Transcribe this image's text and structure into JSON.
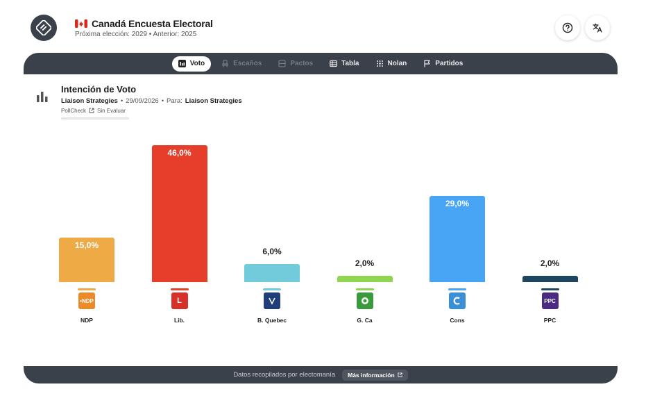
{
  "header": {
    "title": "Canadá Encuesta Electoral",
    "subtitle": "Próxima elección: 2029 • Anterior: 2025"
  },
  "tabs": [
    {
      "label": "Voto",
      "icon": "bar-chart-icon",
      "state": "active"
    },
    {
      "label": "Escaños",
      "icon": "seat-icon",
      "state": "disabled"
    },
    {
      "label": "Pactos",
      "icon": "pact-icon",
      "state": "disabled"
    },
    {
      "label": "Tabla",
      "icon": "table-icon",
      "state": "normal"
    },
    {
      "label": "Nolan",
      "icon": "nolan-icon",
      "state": "normal"
    },
    {
      "label": "Partidos",
      "icon": "flag-icon",
      "state": "normal"
    }
  ],
  "poll": {
    "title": "Intención de Voto",
    "pollster": "Liaison Strategies",
    "date": "29/09/2026",
    "for_label": "Para:",
    "for_value": "Liaison Strategies",
    "pollcheck": "PollCheck",
    "rating": "Sin Evaluar"
  },
  "footer": {
    "text": "Datos recopilados por electomanía",
    "button": "Más información"
  },
  "colors": {
    "dark": "#3b414b",
    "NDP": "#eeab45",
    "Lib": "#e53f2b",
    "BQ": "#72cbdb",
    "GP": "#8ed652",
    "Cons": "#48a4f5",
    "PPC": "#1e4660"
  },
  "chart_data": {
    "type": "bar",
    "title": "Intención de Voto",
    "categories": [
      "NDP",
      "Lib.",
      "B. Quebec",
      "G. Ca",
      "Cons",
      "PPC"
    ],
    "values": [
      15.0,
      46.0,
      6.0,
      2.0,
      29.0,
      2.0
    ],
    "value_labels": [
      "15,0%",
      "46,0%",
      "6,0%",
      "2,0%",
      "29,0%",
      "2,0%"
    ],
    "bar_colors": [
      "#eeab45",
      "#e53f2b",
      "#72cbdb",
      "#8ed652",
      "#48a4f5",
      "#1e4660"
    ],
    "logo_colors": [
      "#ec8a2a",
      "#d6302b",
      "#1f3e7a",
      "#3a9a3d",
      "#3b8fd6",
      "#4b2a86"
    ],
    "logo_text": [
      "•NDP",
      "L",
      "",
      "",
      "",
      "PPC"
    ],
    "ylim": [
      0,
      46
    ],
    "grid": false,
    "legend": "none"
  }
}
